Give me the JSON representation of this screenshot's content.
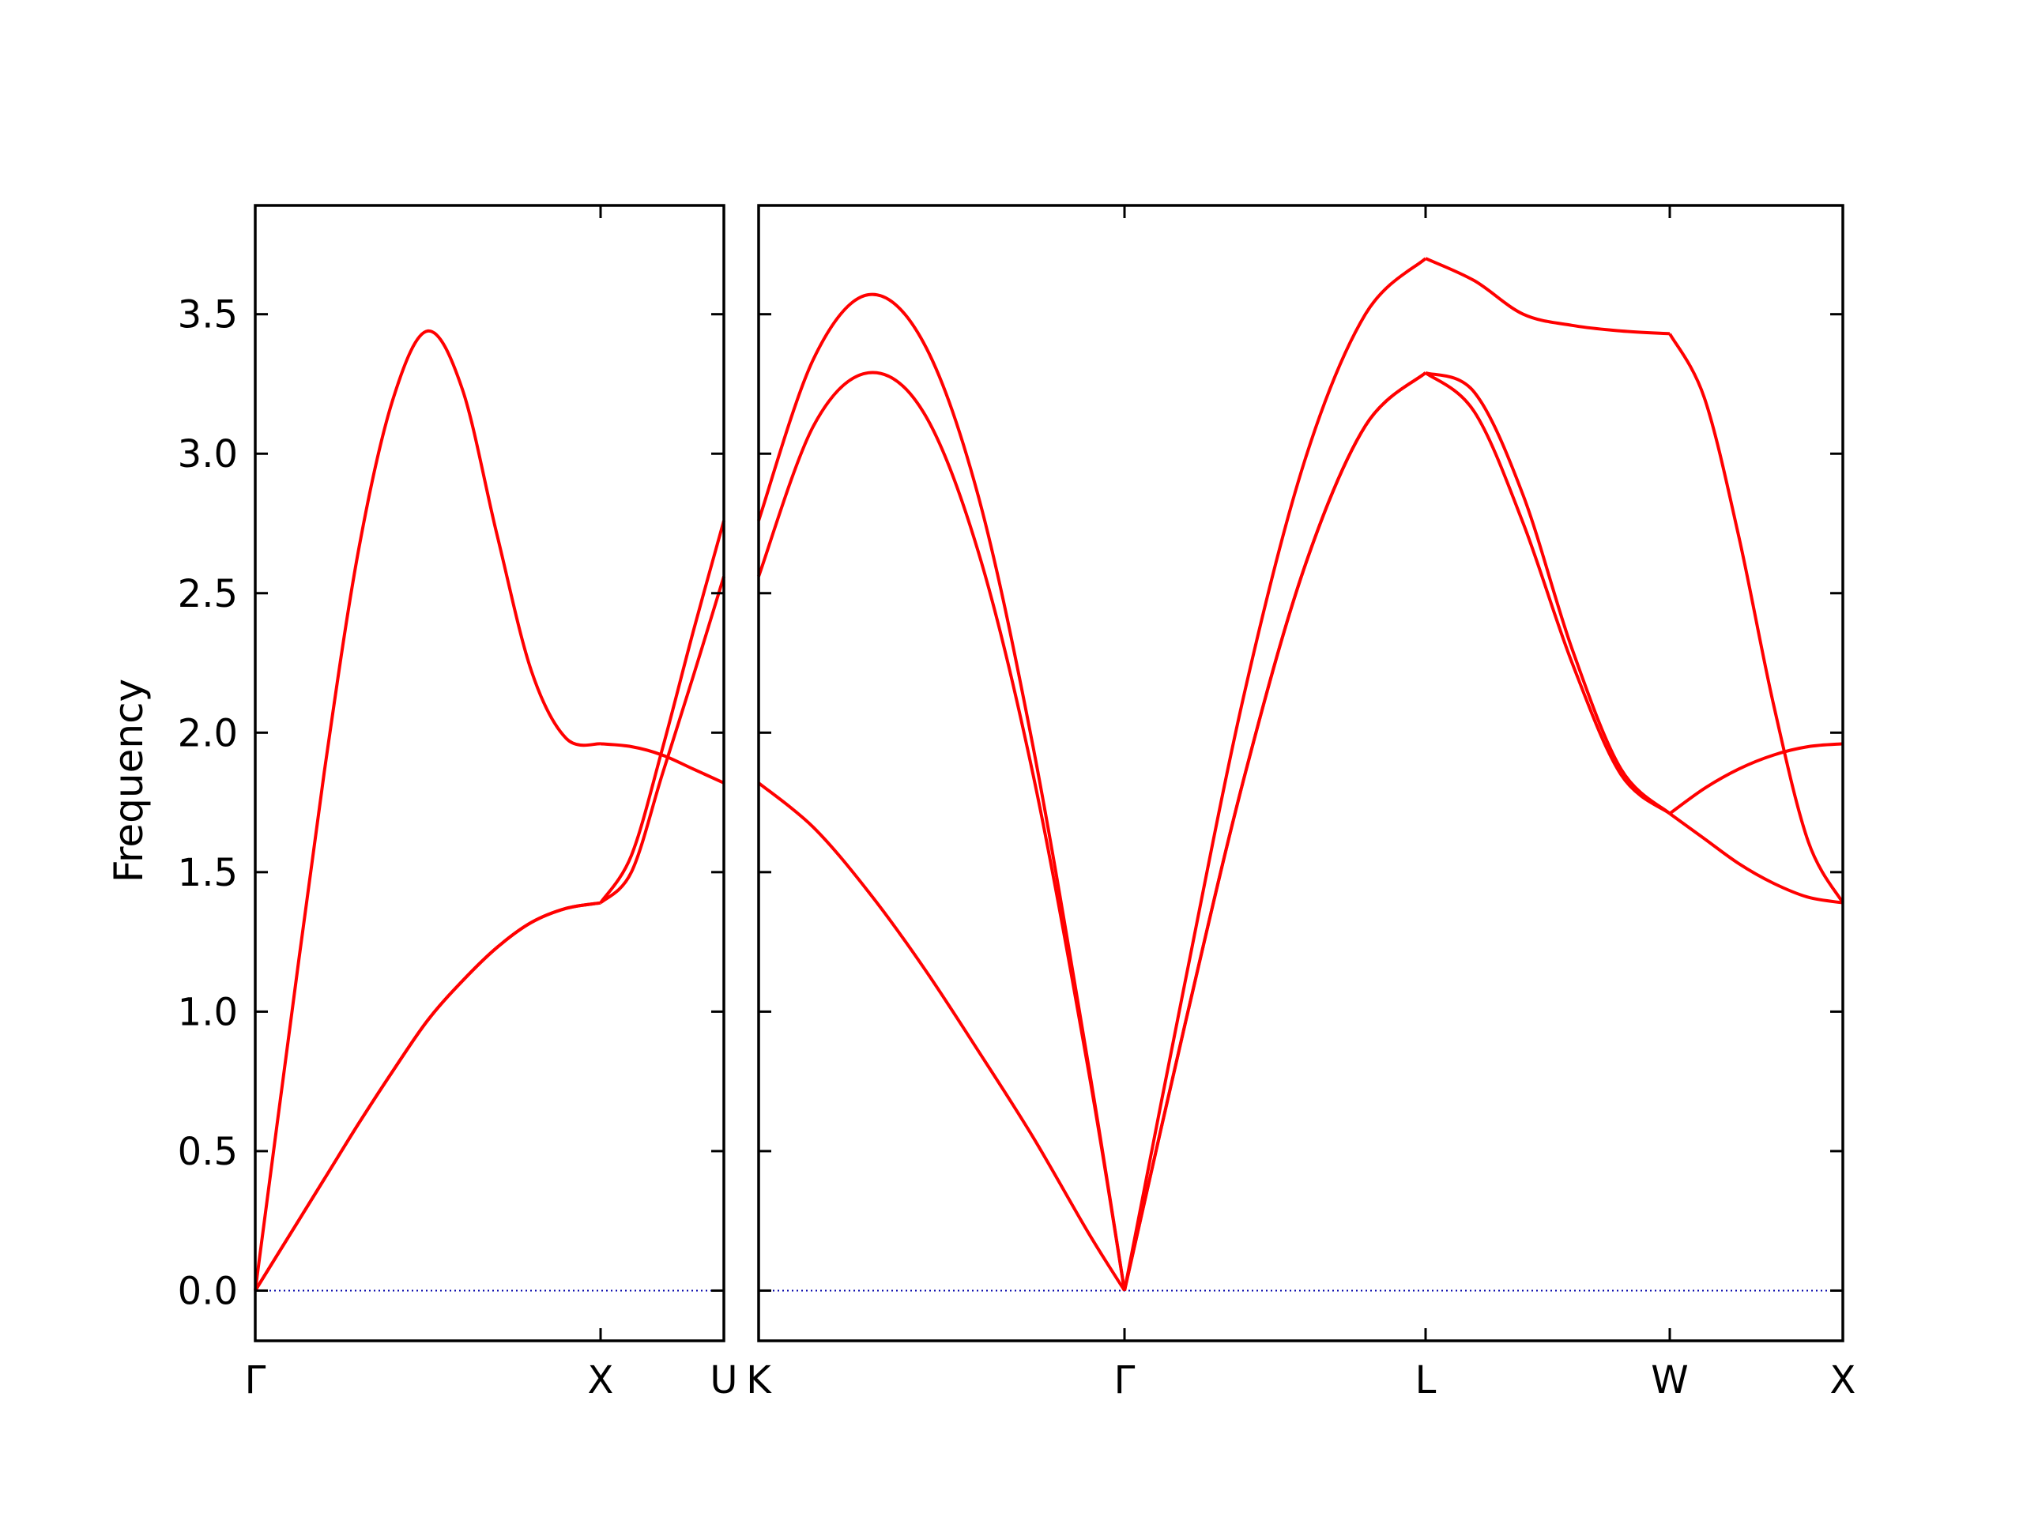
{
  "chart_data": {
    "type": "line",
    "title": "",
    "ylabel": "Frequency",
    "ylim": [
      -0.18,
      3.89
    ],
    "yticks": [
      0.0,
      0.5,
      1.0,
      1.5,
      2.0,
      2.5,
      3.0,
      3.5
    ],
    "ytick_labels": [
      "0.0",
      "0.5",
      "1.0",
      "1.5",
      "2.0",
      "2.5",
      "3.0",
      "3.5"
    ],
    "line_color": "#ff0000",
    "zero_line_color": "#0000aa",
    "panels": [
      {
        "segments": [
          {
            "from": "Γ",
            "to": "X",
            "bands": [
              [
                [
                  0,
                  0.0
                ],
                [
                  0.1,
                  0.94
                ],
                [
                  0.2,
                  1.86
                ],
                [
                  0.3,
                  2.66
                ],
                [
                  0.4,
                  3.2
                ],
                [
                  0.5,
                  3.44
                ],
                [
                  0.6,
                  3.23
                ],
                [
                  0.7,
                  2.71
                ],
                [
                  0.8,
                  2.22
                ],
                [
                  0.9,
                  1.98
                ],
                [
                  1.0,
                  1.96
                ]
              ],
              [
                [
                  0,
                  0.0
                ],
                [
                  0.1,
                  0.2
                ],
                [
                  0.2,
                  0.4
                ],
                [
                  0.3,
                  0.6
                ],
                [
                  0.4,
                  0.79
                ],
                [
                  0.5,
                  0.97
                ],
                [
                  0.6,
                  1.11
                ],
                [
                  0.7,
                  1.23
                ],
                [
                  0.8,
                  1.32
                ],
                [
                  0.9,
                  1.37
                ],
                [
                  1.0,
                  1.39
                ]
              ],
              [
                [
                  0,
                  0.0
                ],
                [
                  0.1,
                  0.2
                ],
                [
                  0.2,
                  0.4
                ],
                [
                  0.3,
                  0.6
                ],
                [
                  0.4,
                  0.79
                ],
                [
                  0.5,
                  0.97
                ],
                [
                  0.6,
                  1.11
                ],
                [
                  0.7,
                  1.23
                ],
                [
                  0.8,
                  1.32
                ],
                [
                  0.9,
                  1.37
                ],
                [
                  1.0,
                  1.39
                ]
              ]
            ]
          },
          {
            "from": "X",
            "to": "U",
            "bands": [
              [
                [
                  0,
                  1.96
                ],
                [
                  0.25,
                  1.95
                ],
                [
                  0.5,
                  1.92
                ],
                [
                  0.75,
                  1.87
                ],
                [
                  1.0,
                  1.82
                ]
              ],
              [
                [
                  0,
                  1.39
                ],
                [
                  0.25,
                  1.56
                ],
                [
                  0.5,
                  1.94
                ],
                [
                  0.75,
                  2.36
                ],
                [
                  1.0,
                  2.76
                ]
              ],
              [
                [
                  0,
                  1.39
                ],
                [
                  0.25,
                  1.5
                ],
                [
                  0.5,
                  1.85
                ],
                [
                  0.75,
                  2.2
                ],
                [
                  1.0,
                  2.56
                ]
              ]
            ]
          }
        ],
        "xticks": [
          "Γ",
          "X",
          "U"
        ]
      },
      {
        "segments": [
          {
            "from": "K",
            "to": "Γ",
            "bands": [
              [
                [
                  0,
                  2.76
                ],
                [
                  0.15,
                  3.34
                ],
                [
                  0.3,
                  3.57
                ],
                [
                  0.45,
                  3.4
                ],
                [
                  0.6,
                  2.85
                ],
                [
                  0.75,
                  1.95
                ],
                [
                  0.9,
                  0.82
                ],
                [
                  1.0,
                  0.0
                ]
              ],
              [
                [
                  0,
                  2.56
                ],
                [
                  0.15,
                  3.1
                ],
                [
                  0.3,
                  3.29
                ],
                [
                  0.45,
                  3.15
                ],
                [
                  0.6,
                  2.65
                ],
                [
                  0.75,
                  1.85
                ],
                [
                  0.9,
                  0.8
                ],
                [
                  1.0,
                  0.0
                ]
              ],
              [
                [
                  0,
                  1.82
                ],
                [
                  0.15,
                  1.66
                ],
                [
                  0.3,
                  1.43
                ],
                [
                  0.45,
                  1.16
                ],
                [
                  0.6,
                  0.86
                ],
                [
                  0.75,
                  0.55
                ],
                [
                  0.9,
                  0.21
                ],
                [
                  1.0,
                  0.0
                ]
              ]
            ]
          },
          {
            "from": "Γ",
            "to": "L",
            "bands": [
              [
                [
                  0,
                  0.0
                ],
                [
                  0.2,
                  1.1
                ],
                [
                  0.4,
                  2.15
                ],
                [
                  0.6,
                  2.98
                ],
                [
                  0.8,
                  3.5
                ],
                [
                  1.0,
                  3.7
                ]
              ],
              [
                [
                  0,
                  0.0
                ],
                [
                  0.2,
                  0.95
                ],
                [
                  0.4,
                  1.85
                ],
                [
                  0.6,
                  2.6
                ],
                [
                  0.8,
                  3.1
                ],
                [
                  1.0,
                  3.29
                ]
              ],
              [
                [
                  0,
                  0.0
                ],
                [
                  0.2,
                  0.95
                ],
                [
                  0.4,
                  1.85
                ],
                [
                  0.6,
                  2.6
                ],
                [
                  0.8,
                  3.1
                ],
                [
                  1.0,
                  3.29
                ]
              ]
            ]
          },
          {
            "from": "L",
            "to": "W",
            "bands": [
              [
                [
                  0,
                  3.7
                ],
                [
                  0.2,
                  3.62
                ],
                [
                  0.4,
                  3.5
                ],
                [
                  0.6,
                  3.46
                ],
                [
                  0.8,
                  3.44
                ],
                [
                  1.0,
                  3.43
                ]
              ],
              [
                [
                  0,
                  3.29
                ],
                [
                  0.2,
                  3.15
                ],
                [
                  0.4,
                  2.75
                ],
                [
                  0.6,
                  2.25
                ],
                [
                  0.8,
                  1.85
                ],
                [
                  1.0,
                  1.71
                ]
              ],
              [
                [
                  0,
                  3.29
                ],
                [
                  0.2,
                  3.22
                ],
                [
                  0.4,
                  2.85
                ],
                [
                  0.6,
                  2.3
                ],
                [
                  0.8,
                  1.87
                ],
                [
                  1.0,
                  1.71
                ]
              ]
            ]
          },
          {
            "from": "W",
            "to": "X",
            "bands": [
              [
                [
                  0,
                  3.43
                ],
                [
                  0.2,
                  3.2
                ],
                [
                  0.4,
                  2.7
                ],
                [
                  0.6,
                  2.1
                ],
                [
                  0.8,
                  1.61
                ],
                [
                  1.0,
                  1.39
                ]
              ],
              [
                [
                  0,
                  1.71
                ],
                [
                  0.2,
                  1.8
                ],
                [
                  0.4,
                  1.87
                ],
                [
                  0.6,
                  1.92
                ],
                [
                  0.8,
                  1.95
                ],
                [
                  1.0,
                  1.96
                ]
              ],
              [
                [
                  0,
                  1.71
                ],
                [
                  0.2,
                  1.62
                ],
                [
                  0.4,
                  1.53
                ],
                [
                  0.6,
                  1.46
                ],
                [
                  0.8,
                  1.41
                ],
                [
                  1.0,
                  1.39
                ]
              ]
            ]
          }
        ],
        "xticks": [
          "K",
          "Γ",
          "L",
          "W",
          "X"
        ]
      }
    ]
  }
}
